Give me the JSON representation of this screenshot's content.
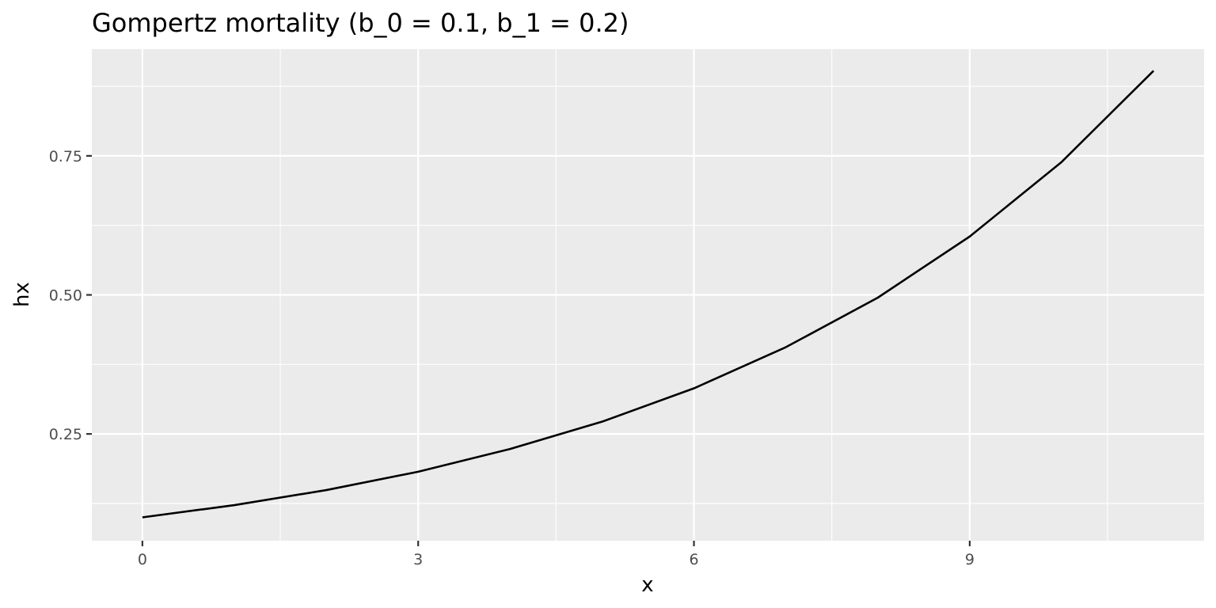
{
  "chart_data": {
    "type": "line",
    "title": "Gompertz mortality (b_0 = 0.1, b_1 = 0.2)",
    "xlabel": "x",
    "ylabel": "hx",
    "xlim": [
      -0.55,
      11.55
    ],
    "ylim": [
      0.058,
      0.942
    ],
    "x_ticks": [
      0,
      3,
      6,
      9
    ],
    "x_tick_labels": [
      "0",
      "3",
      "6",
      "9"
    ],
    "y_ticks": [
      0.25,
      0.5,
      0.75
    ],
    "y_tick_labels": [
      "0.25",
      "0.50",
      "0.75"
    ],
    "grid": true,
    "legend": "none",
    "background_color": "#ebebeb",
    "series": [
      {
        "color": "#000000",
        "x": [
          0,
          1,
          2,
          3,
          4,
          5,
          6,
          7,
          8,
          9,
          10,
          11
        ],
        "y": [
          0.1,
          0.122,
          0.149,
          0.182,
          0.223,
          0.272,
          0.332,
          0.406,
          0.495,
          0.605,
          0.739,
          0.903
        ]
      }
    ]
  }
}
